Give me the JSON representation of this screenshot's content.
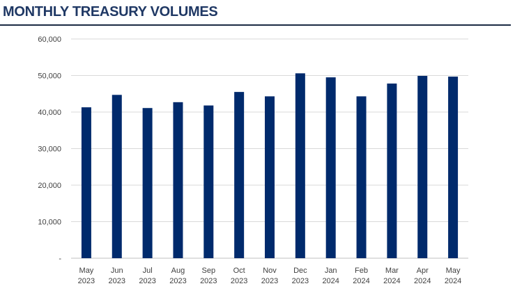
{
  "title": "MONTHLY TREASURY VOLUMES",
  "colors": {
    "bar": "#002a6c",
    "title": "#1f3864",
    "grid": "#d9d9d9"
  },
  "chart_data": {
    "type": "bar",
    "title": "MONTHLY TREASURY VOLUMES",
    "categories": [
      "May 2023",
      "Jun 2023",
      "Jul 2023",
      "Aug 2023",
      "Sep 2023",
      "Oct 2023",
      "Nov 2023",
      "Dec 2023",
      "Jan 2024",
      "Feb 2024",
      "Mar 2024",
      "Apr 2024",
      "May 2024"
    ],
    "values": [
      41300,
      44700,
      41100,
      42700,
      41800,
      45500,
      44300,
      50600,
      49500,
      44300,
      47800,
      49900,
      49700
    ],
    "ylim": [
      0,
      60000
    ],
    "yticks": [
      0,
      10000,
      20000,
      30000,
      40000,
      50000,
      60000
    ],
    "ytick_labels": [
      "-",
      "10,000",
      "20,000",
      "30,000",
      "40,000",
      "50,000",
      "60,000"
    ],
    "grid": true,
    "legend": "none"
  }
}
